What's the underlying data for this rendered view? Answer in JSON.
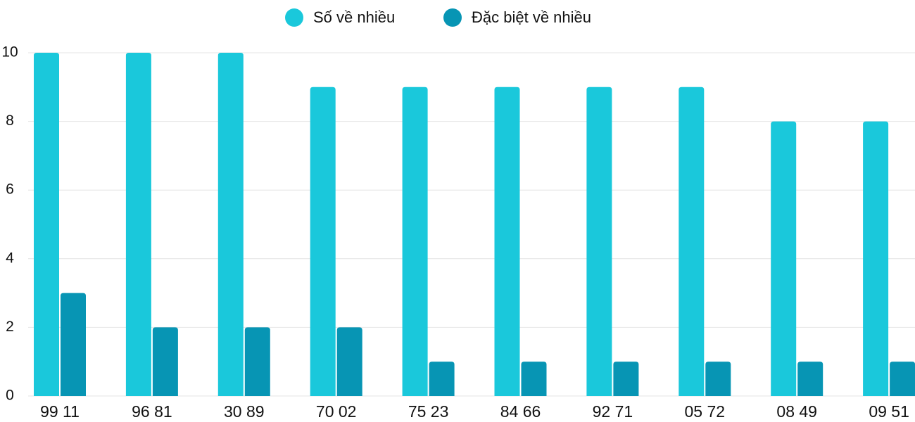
{
  "chart_data": {
    "type": "bar",
    "categories": [
      "99 11",
      "96 81",
      "30 89",
      "70 02",
      "75 23",
      "84 66",
      "92 71",
      "05 72",
      "08 49",
      "09 51"
    ],
    "series": [
      {
        "name": "Số về nhiều",
        "color": "#1ac8db",
        "values": [
          10,
          10,
          10,
          9,
          9,
          9,
          9,
          9,
          8,
          8
        ]
      },
      {
        "name": "Đặc biệt về nhiều",
        "color": "#0795b4",
        "values": [
          3,
          2,
          2,
          2,
          1,
          1,
          1,
          1,
          1,
          1
        ]
      }
    ],
    "ylim": [
      0,
      10
    ],
    "yticks": [
      0,
      2,
      4,
      6,
      8,
      10
    ],
    "grid": true,
    "legend": "top"
  }
}
